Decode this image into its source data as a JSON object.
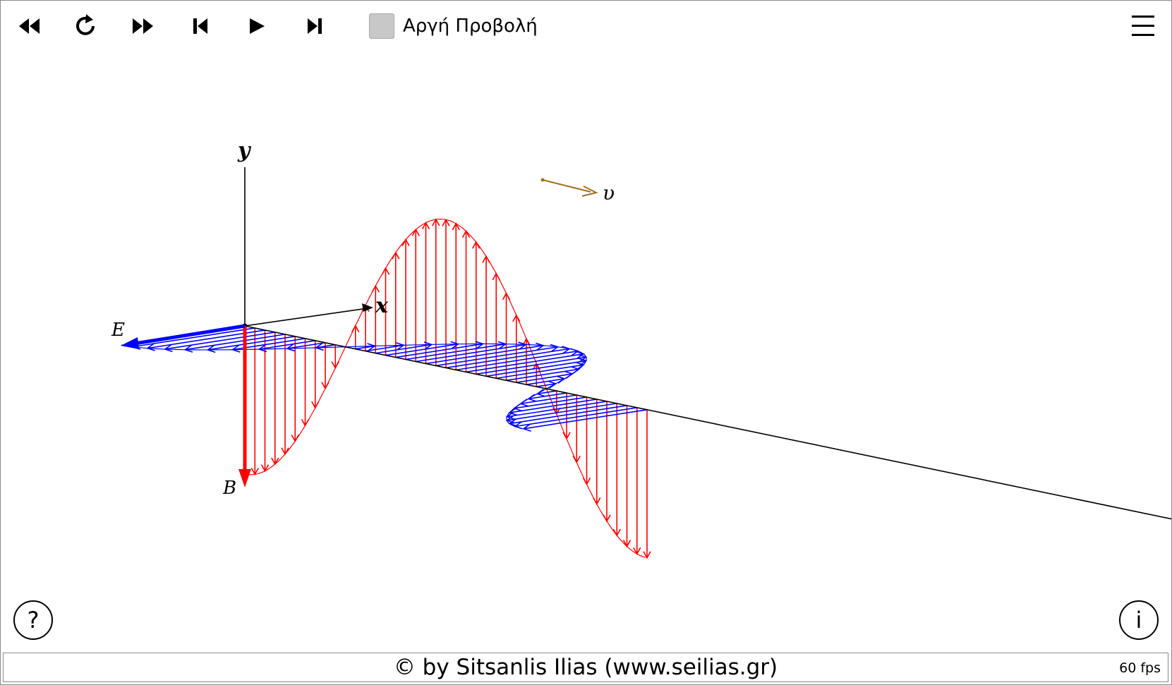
{
  "toolbar": {
    "buttons": [
      {
        "name": "rewind-button",
        "icon": "rewind-icon"
      },
      {
        "name": "reload-button",
        "icon": "reload-icon"
      },
      {
        "name": "fast-forward-button",
        "icon": "fast-forward-icon"
      },
      {
        "name": "step-back-button",
        "icon": "step-back-icon"
      },
      {
        "name": "play-button",
        "icon": "play-icon"
      },
      {
        "name": "step-forward-button",
        "icon": "step-forward-icon"
      }
    ],
    "slow_motion_label": "Αργή Προβολή",
    "slow_motion_checked": false,
    "menu_icon": "menu-icon"
  },
  "scene": {
    "axis_x_label": "x",
    "axis_y_label": "y",
    "e_field_label": "E",
    "b_field_label": "B",
    "velocity_label": "υ",
    "colors": {
      "e_field": "#0000ff",
      "b_field": "#ff0000",
      "velocity": "#a07020",
      "axes": "#000000"
    }
  },
  "help_button": "?",
  "info_button": "i",
  "footer": {
    "credit": "© by Sitsanlis Ilias (www.seilias.gr)",
    "fps": "60 fps"
  }
}
